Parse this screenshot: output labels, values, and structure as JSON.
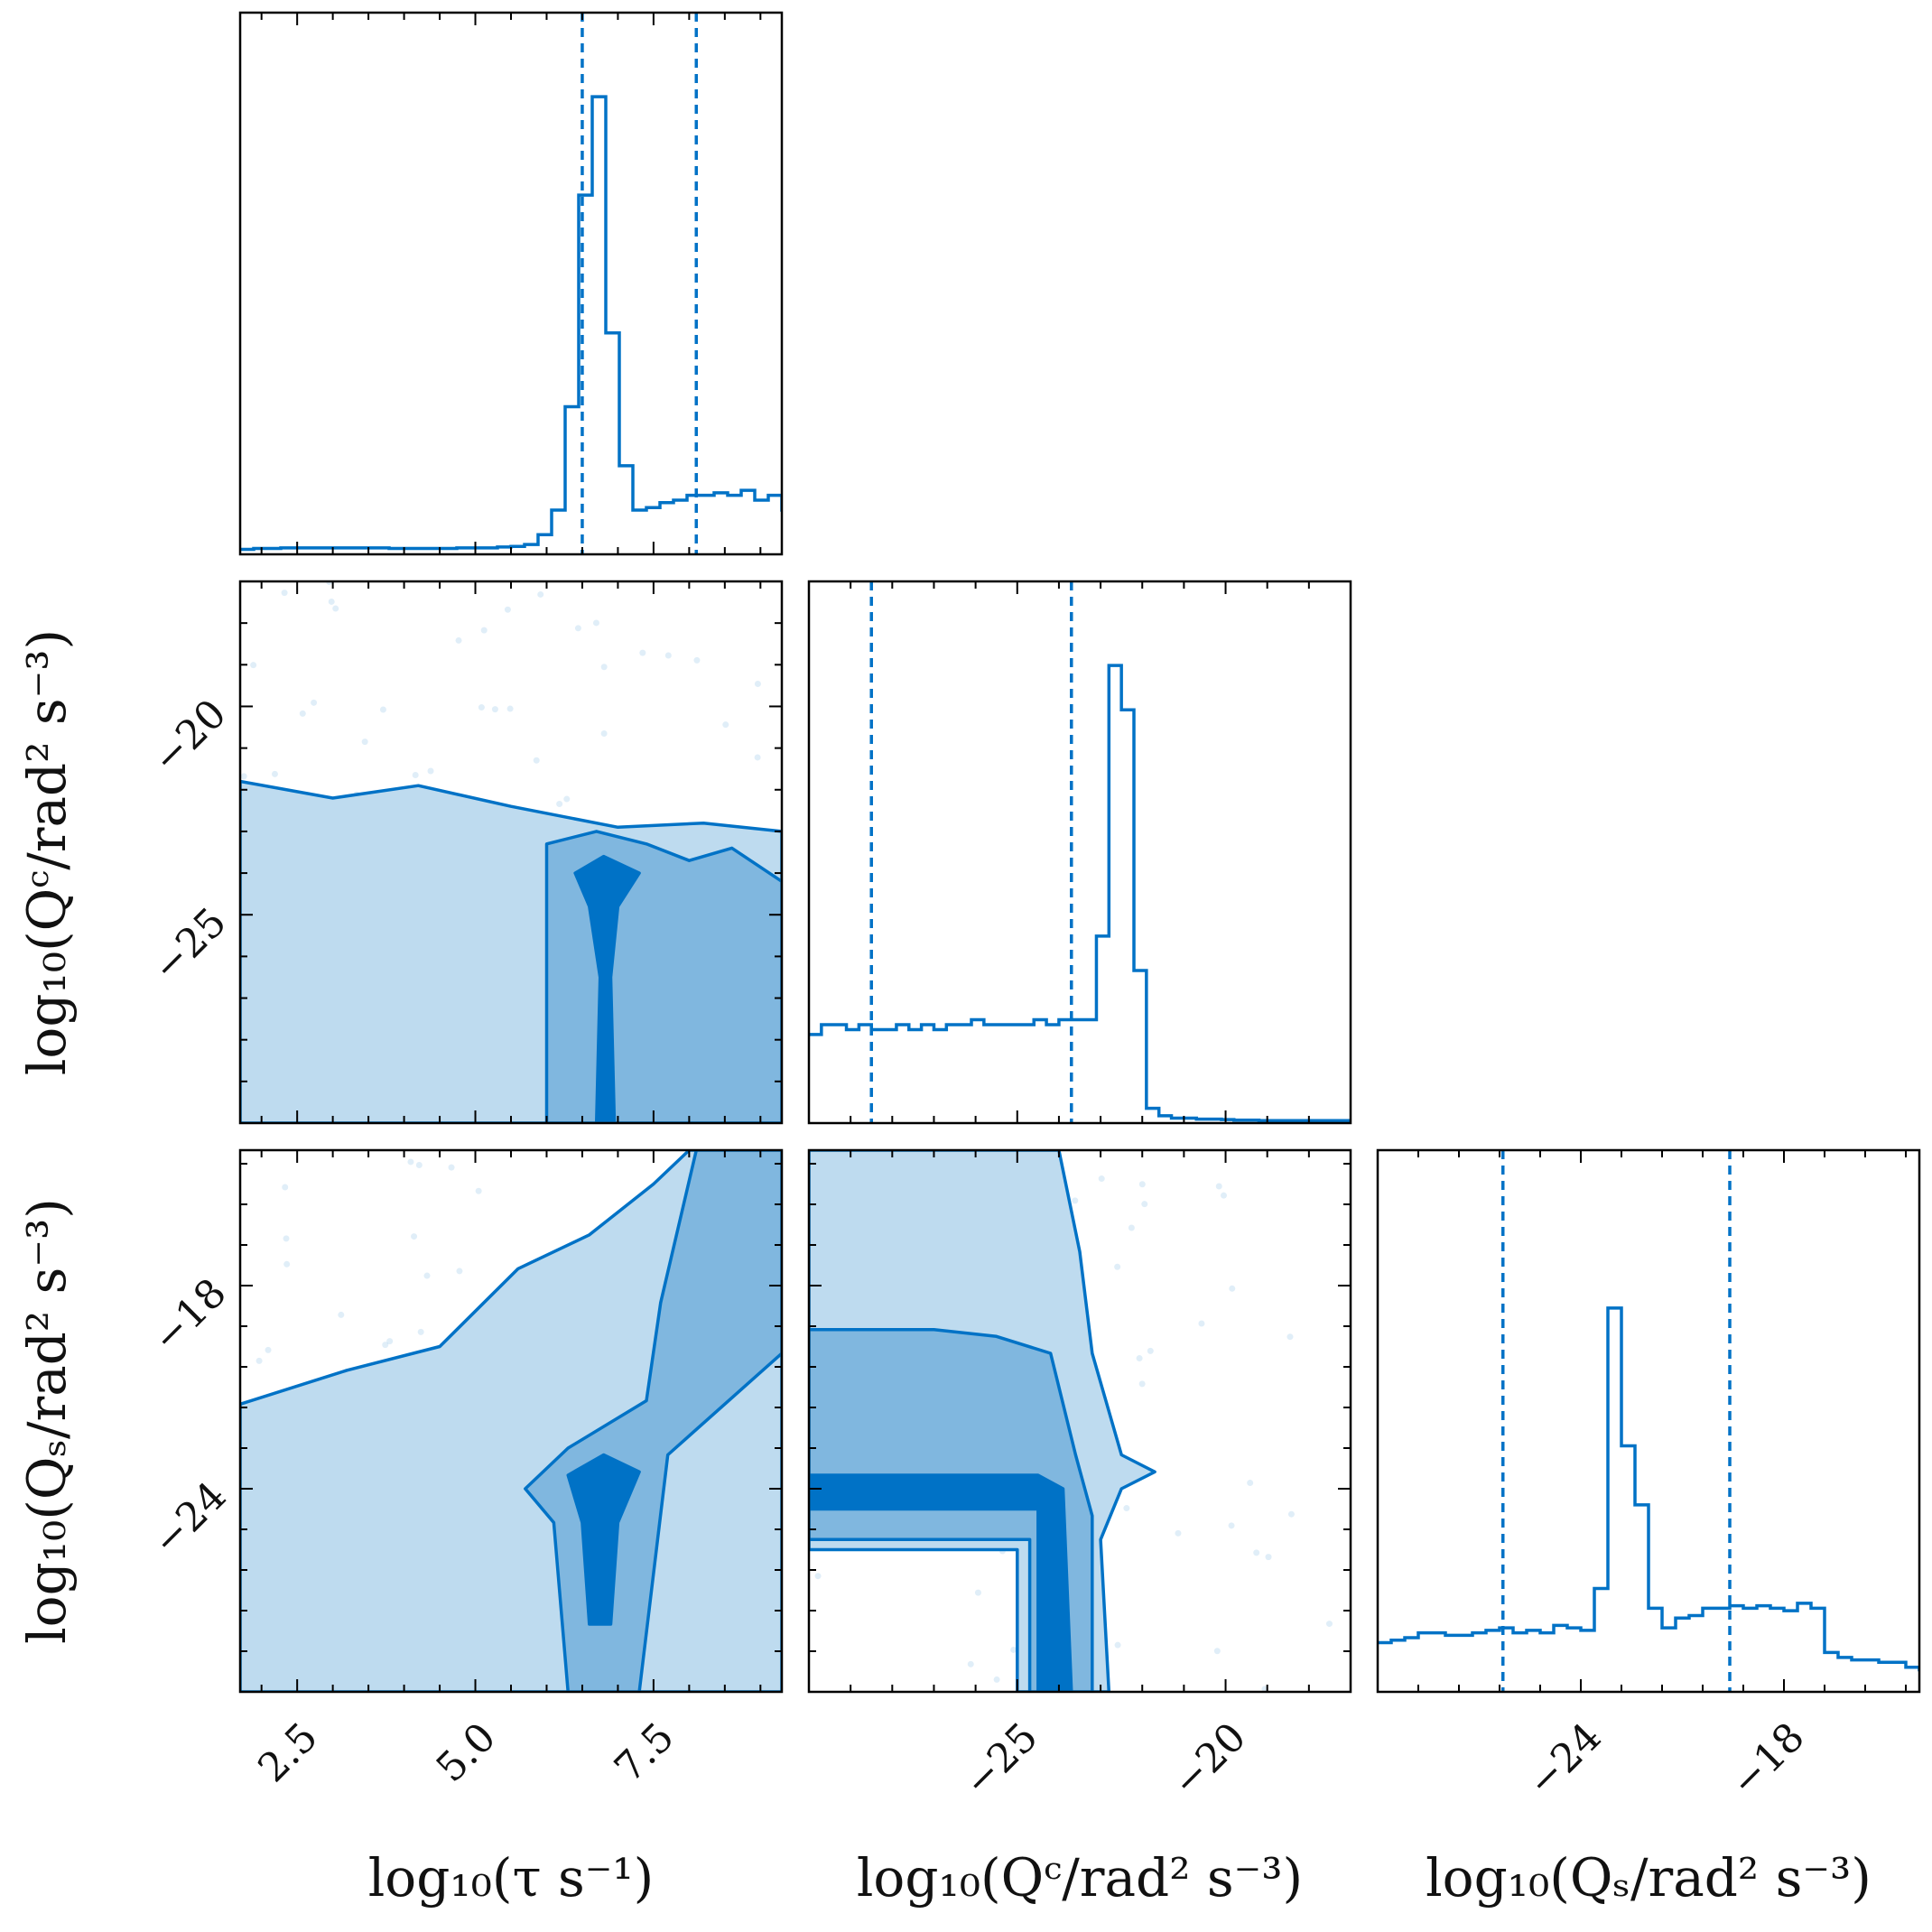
{
  "chart_data": {
    "type": "corner",
    "color": "#0072C6",
    "fill_colors": [
      "#BEDBEF",
      "#80B7DF",
      "#0072C6"
    ],
    "parameters": [
      {
        "id": "tau",
        "label": "log₁₀(τ s⁻¹)",
        "range": [
          1.7,
          9.3
        ],
        "ticks": [
          2.5,
          5.0,
          7.5
        ],
        "tick_labels": [
          "2.5",
          "5.0",
          "7.5"
        ],
        "interval": [
          6.5,
          8.1
        ]
      },
      {
        "id": "qc",
        "label": "log₁₀(Qᶜ/rad² s⁻³)",
        "range": [
          -30.0,
          -17.0
        ],
        "ticks": [
          -25,
          -20
        ],
        "tick_labels": [
          "−25",
          "−20"
        ],
        "interval": [
          -28.5,
          -23.7
        ]
      },
      {
        "id": "qs",
        "label": "log₁₀(Qₛ/rad² s⁻³)",
        "range": [
          -30.0,
          -14.0
        ],
        "ticks": [
          -24,
          -18
        ],
        "tick_labels": [
          "−24",
          "−18"
        ],
        "interval": [
          -26.3,
          -19.6
        ]
      }
    ],
    "histograms": [
      {
        "parameter": "tau",
        "bin_start": 1.7,
        "bin_width": 0.19,
        "counts": [
          0.01,
          0.012,
          0.012,
          0.013,
          0.013,
          0.013,
          0.013,
          0.013,
          0.013,
          0.013,
          0.013,
          0.012,
          0.012,
          0.012,
          0.012,
          0.012,
          0.013,
          0.013,
          0.013,
          0.015,
          0.016,
          0.02,
          0.04,
          0.09,
          0.3,
          0.73,
          0.93,
          0.45,
          0.18,
          0.09,
          0.095,
          0.105,
          0.11,
          0.12,
          0.12,
          0.125,
          0.12,
          0.13,
          0.11,
          0.12,
          0.09
        ]
      },
      {
        "parameter": "qc",
        "bin_start": -30.0,
        "bin_width": 0.3,
        "counts": [
          0.18,
          0.2,
          0.2,
          0.19,
          0.2,
          0.19,
          0.19,
          0.2,
          0.19,
          0.2,
          0.19,
          0.2,
          0.2,
          0.21,
          0.2,
          0.2,
          0.2,
          0.2,
          0.21,
          0.2,
          0.21,
          0.21,
          0.21,
          0.38,
          0.93,
          0.84,
          0.31,
          0.03,
          0.015,
          0.01,
          0.01,
          0.008,
          0.008,
          0.007,
          0.006,
          0.006,
          0.005,
          0.005,
          0.005,
          0.005,
          0.005,
          0.005,
          0.005,
          0.005
        ]
      },
      {
        "parameter": "qs",
        "bin_start": -30.0,
        "bin_width": 0.4,
        "counts": [
          0.1,
          0.105,
          0.11,
          0.12,
          0.12,
          0.115,
          0.115,
          0.12,
          0.125,
          0.13,
          0.12,
          0.125,
          0.12,
          0.135,
          0.13,
          0.125,
          0.21,
          0.78,
          0.5,
          0.38,
          0.17,
          0.13,
          0.15,
          0.155,
          0.17,
          0.17,
          0.175,
          0.17,
          0.175,
          0.17,
          0.165,
          0.18,
          0.17,
          0.08,
          0.07,
          0.065,
          0.065,
          0.06,
          0.06,
          0.05,
          0.045,
          0.045
        ]
      }
    ],
    "contour_panels": [
      {
        "x": "tau",
        "y": "qc",
        "levels": [
          [
            [
              1.7,
              -21.8
            ],
            [
              3.0,
              -22.2
            ],
            [
              4.2,
              -21.9
            ],
            [
              5.5,
              -22.4
            ],
            [
              7.0,
              -22.9
            ],
            [
              8.2,
              -22.8
            ],
            [
              9.3,
              -23.0
            ],
            [
              9.3,
              -30.0
            ],
            [
              1.7,
              -30.0
            ]
          ],
          [
            [
              6.0,
              -23.3
            ],
            [
              6.7,
              -23.0
            ],
            [
              7.4,
              -23.3
            ],
            [
              8.0,
              -23.7
            ],
            [
              8.6,
              -23.4
            ],
            [
              9.3,
              -24.2
            ],
            [
              9.3,
              -30.0
            ],
            [
              6.0,
              -30.0
            ]
          ],
          [
            [
              6.4,
              -24.0
            ],
            [
              6.8,
              -23.6
            ],
            [
              7.3,
              -24.0
            ],
            [
              7.0,
              -24.8
            ],
            [
              6.9,
              -26.5
            ],
            [
              6.95,
              -30.0
            ],
            [
              6.7,
              -30.0
            ],
            [
              6.75,
              -26.5
            ],
            [
              6.6,
              -24.8
            ]
          ]
        ]
      },
      {
        "x": "tau",
        "y": "qs",
        "levels": [
          [
            [
              1.7,
              -21.5
            ],
            [
              3.2,
              -20.5
            ],
            [
              4.5,
              -19.8
            ],
            [
              5.6,
              -17.5
            ],
            [
              6.6,
              -16.5
            ],
            [
              7.5,
              -15.0
            ],
            [
              8.0,
              -14.0
            ],
            [
              9.3,
              -14.0
            ],
            [
              9.3,
              -30.0
            ],
            [
              1.7,
              -30.0
            ]
          ],
          [
            [
              5.7,
              -24.0
            ],
            [
              6.3,
              -22.8
            ],
            [
              7.4,
              -21.4
            ],
            [
              7.6,
              -18.5
            ],
            [
              8.1,
              -14.0
            ],
            [
              9.3,
              -14.0
            ],
            [
              9.3,
              -20.0
            ],
            [
              7.7,
              -23.0
            ],
            [
              7.3,
              -30.0
            ],
            [
              6.3,
              -30.0
            ],
            [
              6.1,
              -25.0
            ]
          ],
          [
            [
              6.3,
              -23.6
            ],
            [
              6.8,
              -23.0
            ],
            [
              7.3,
              -23.5
            ],
            [
              7.0,
              -25.0
            ],
            [
              6.9,
              -28.0
            ],
            [
              6.6,
              -28.0
            ],
            [
              6.5,
              -25.0
            ]
          ]
        ]
      },
      {
        "x": "qc",
        "y": "qs",
        "levels": [
          [
            [
              -30.0,
              -14.0
            ],
            [
              -24.0,
              -14.0
            ],
            [
              -23.5,
              -17.0
            ],
            [
              -23.2,
              -20.0
            ],
            [
              -22.5,
              -23.0
            ],
            [
              -21.7,
              -23.5
            ],
            [
              -22.5,
              -24.0
            ],
            [
              -23.0,
              -25.5
            ],
            [
              -22.8,
              -30.0
            ],
            [
              -25.0,
              -30.0
            ],
            [
              -25.0,
              -25.8
            ],
            [
              -30.0,
              -25.8
            ]
          ],
          [
            [
              -30.0,
              -19.3
            ],
            [
              -27.0,
              -19.3
            ],
            [
              -25.5,
              -19.5
            ],
            [
              -24.2,
              -20.0
            ],
            [
              -23.6,
              -23.0
            ],
            [
              -23.2,
              -24.8
            ],
            [
              -23.2,
              -30.0
            ],
            [
              -24.7,
              -30.0
            ],
            [
              -24.7,
              -25.5
            ],
            [
              -30.0,
              -25.5
            ]
          ],
          [
            [
              -30.0,
              -23.6
            ],
            [
              -24.5,
              -23.6
            ],
            [
              -23.9,
              -24.0
            ],
            [
              -23.7,
              -30.0
            ],
            [
              -24.5,
              -30.0
            ],
            [
              -24.5,
              -24.6
            ],
            [
              -30.0,
              -24.6
            ]
          ]
        ]
      }
    ],
    "scatter": "outlier samples outside the lowest contour (light blue points)",
    "grid": false,
    "legend": "none"
  }
}
